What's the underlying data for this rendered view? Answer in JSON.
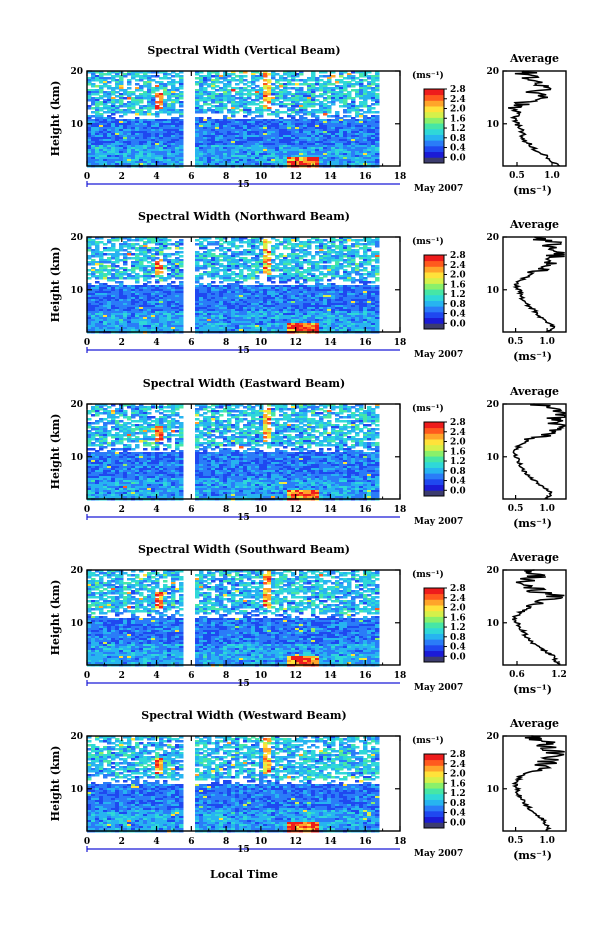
{
  "chart_data": {
    "type": "heatmap",
    "xlabel": "Local Time",
    "date_label": "15",
    "month_label": "May 2007",
    "ylabel": "Height (km)",
    "x_ticks": [
      "0",
      "2",
      "4",
      "6",
      "8",
      "10",
      "12",
      "14",
      "16",
      "18"
    ],
    "y_ticks": [
      "10",
      "20"
    ],
    "x_range": [
      0,
      18
    ],
    "y_range": [
      2,
      20
    ],
    "data_gap_hours": [
      5.7,
      6.0
    ],
    "data_end_hour": 16.6,
    "colorbar": {
      "unit": "(ms⁻¹)",
      "ticks": [
        "0.0",
        "0.4",
        "0.8",
        "1.2",
        "1.6",
        "2.0",
        "2.4",
        "2.8"
      ],
      "range": [
        0.0,
        2.8
      ],
      "colors": [
        "#3c3c6e",
        "#1b1bd6",
        "#1f48f0",
        "#2a7cf8",
        "#27b4f0",
        "#2fd8d8",
        "#46e6a6",
        "#8af06a",
        "#d6f04a",
        "#ffe23a",
        "#ffa52a",
        "#ff5a1e",
        "#ee1c1c"
      ]
    },
    "panels": [
      {
        "title": "Spectral Width (Vertical Beam)",
        "average": {
          "title": "Average",
          "xlabel": "(ms⁻¹)",
          "xticks": [
            "0.5",
            "1.0"
          ],
          "xlim": [
            0.3,
            1.2
          ],
          "heights": [
            2,
            3,
            4,
            5,
            6,
            7,
            8,
            9,
            10,
            11,
            12,
            13,
            14,
            15,
            16,
            17,
            18,
            19,
            20
          ],
          "values": [
            1.1,
            1.0,
            0.9,
            0.75,
            0.7,
            0.6,
            0.58,
            0.55,
            0.5,
            0.45,
            0.55,
            0.4,
            0.6,
            0.85,
            0.75,
            0.95,
            0.7,
            0.65,
            0.6
          ]
        }
      },
      {
        "title": "Spectral Width (Northward Beam)",
        "average": {
          "title": "Average",
          "xlabel": "(ms⁻¹)",
          "xticks": [
            "0.5",
            "1.0"
          ],
          "xlim": [
            0.3,
            1.3
          ],
          "heights": [
            2,
            3,
            4,
            5,
            6,
            7,
            8,
            9,
            10,
            11,
            12,
            13,
            14,
            15,
            16,
            17,
            18,
            19,
            20
          ],
          "values": [
            1.0,
            1.1,
            1.0,
            0.85,
            0.8,
            0.7,
            0.62,
            0.58,
            0.55,
            0.5,
            0.6,
            0.75,
            0.9,
            1.0,
            1.1,
            1.2,
            1.0,
            1.1,
            0.8
          ]
        }
      },
      {
        "title": "Spectral Width (Eastward Beam)",
        "average": {
          "title": "Average",
          "xlabel": "(ms⁻¹)",
          "xticks": [
            "0.5",
            "1.0"
          ],
          "xlim": [
            0.3,
            1.3
          ],
          "heights": [
            2,
            3,
            4,
            5,
            6,
            7,
            8,
            9,
            10,
            11,
            12,
            13,
            14,
            15,
            16,
            17,
            18,
            19,
            20
          ],
          "values": [
            1.0,
            1.05,
            1.0,
            0.85,
            0.75,
            0.65,
            0.6,
            0.55,
            0.52,
            0.48,
            0.55,
            0.7,
            0.9,
            1.1,
            1.2,
            1.1,
            1.25,
            1.2,
            0.8
          ]
        }
      },
      {
        "title": "Spectral Width (Southward Beam)",
        "average": {
          "title": "Average",
          "xlabel": "(ms⁻¹)",
          "xticks": [
            "0.6",
            "1.2"
          ],
          "xlim": [
            0.4,
            1.3
          ],
          "heights": [
            2,
            3,
            4,
            5,
            6,
            7,
            8,
            9,
            10,
            11,
            12,
            13,
            14,
            15,
            16,
            17,
            18,
            19,
            20
          ],
          "values": [
            1.2,
            1.15,
            1.1,
            0.95,
            0.85,
            0.75,
            0.7,
            0.65,
            0.6,
            0.55,
            0.65,
            0.8,
            1.0,
            1.15,
            0.9,
            0.75,
            0.7,
            0.95,
            0.85
          ]
        }
      },
      {
        "title": "Spectral Width (Westward Beam)",
        "average": {
          "title": "Average",
          "xlabel": "(ms⁻¹)",
          "xticks": [
            "0.5",
            "1.0"
          ],
          "xlim": [
            0.3,
            1.3
          ],
          "heights": [
            2,
            3,
            4,
            5,
            6,
            7,
            8,
            9,
            10,
            11,
            12,
            13,
            14,
            15,
            16,
            17,
            18,
            19,
            20
          ],
          "values": [
            1.0,
            1.0,
            0.95,
            0.85,
            0.75,
            0.65,
            0.6,
            0.55,
            0.52,
            0.5,
            0.55,
            0.65,
            0.9,
            1.0,
            1.1,
            1.15,
            1.0,
            0.95,
            0.75
          ]
        }
      }
    ]
  }
}
